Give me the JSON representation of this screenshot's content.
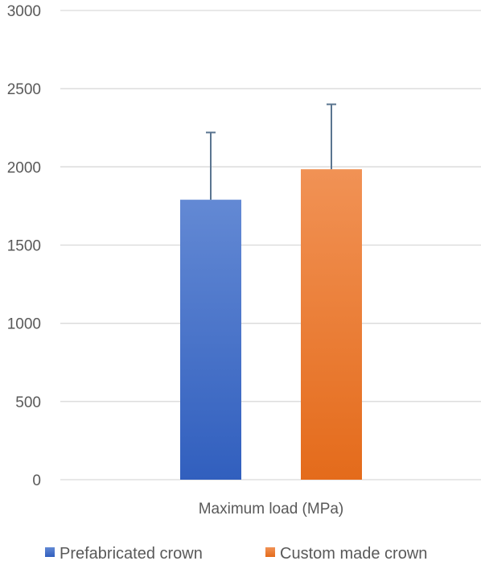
{
  "chart_data": {
    "type": "bar",
    "categories": [
      "Maximum load (MPa)"
    ],
    "series": [
      {
        "name": "Prefabricated crown",
        "values": [
          1790
        ],
        "error": [
          430
        ],
        "color_top": "#6389d4",
        "color_bottom": "#315fbe"
      },
      {
        "name": "Custom made crown",
        "values": [
          1985
        ],
        "error": [
          415
        ],
        "color_top": "#f19255",
        "color_bottom": "#e46b1b"
      }
    ],
    "ylim": [
      0,
      3000
    ],
    "yticks": [
      0,
      500,
      1000,
      1500,
      2000,
      2500,
      3000
    ],
    "grid": true,
    "legend_position": "bottom",
    "title": "",
    "xlabel": "",
    "ylabel": "",
    "error_bar_color": "#5a7590",
    "grid_color": "#d9d9d9",
    "text_color": "#595959"
  }
}
